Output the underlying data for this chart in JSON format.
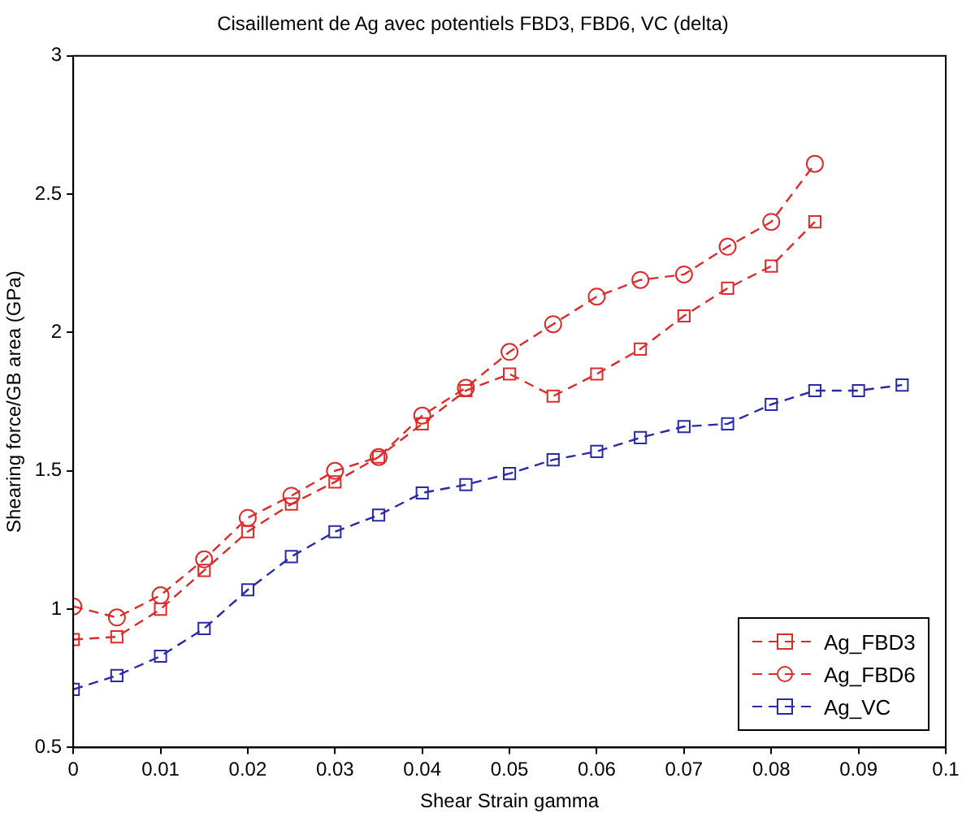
{
  "chart_data": {
    "type": "line",
    "title": "Cisaillement de Ag avec potentiels FBD3, FBD6, VC (delta)",
    "xlabel": "Shear Strain gamma",
    "ylabel": "Shearing force/GB area (GPa)",
    "x": [
      0,
      0.005,
      0.01,
      0.015,
      0.02,
      0.025,
      0.03,
      0.035,
      0.04,
      0.045,
      0.05,
      0.055,
      0.06,
      0.065,
      0.07,
      0.075,
      0.08,
      0.085,
      0.09,
      0.095
    ],
    "series": [
      {
        "name": "Ag_FBD3",
        "color": "#dd2a2a",
        "marker": "square",
        "values": [
          0.89,
          0.9,
          1.0,
          1.14,
          1.28,
          1.38,
          1.46,
          1.55,
          1.67,
          1.79,
          1.85,
          1.77,
          1.85,
          1.94,
          2.06,
          2.16,
          2.24,
          2.4,
          null,
          null
        ]
      },
      {
        "name": "Ag_FBD6",
        "color": "#dd2a2a",
        "marker": "circle",
        "values": [
          1.01,
          0.97,
          1.05,
          1.18,
          1.33,
          1.41,
          1.5,
          1.55,
          1.7,
          1.8,
          1.93,
          2.03,
          2.13,
          2.19,
          2.21,
          2.31,
          2.4,
          2.61,
          null,
          null
        ]
      },
      {
        "name": "Ag_VC",
        "color": "#2a2aa6",
        "marker": "square",
        "values": [
          0.71,
          0.76,
          0.83,
          0.93,
          1.07,
          1.19,
          1.28,
          1.34,
          1.42,
          1.45,
          1.49,
          1.54,
          1.57,
          1.62,
          1.66,
          1.67,
          1.74,
          1.79,
          1.79,
          1.81
        ]
      }
    ],
    "xlim": [
      0,
      0.1
    ],
    "xticks": [
      0,
      0.01,
      0.02,
      0.03,
      0.04,
      0.05,
      0.06,
      0.07,
      0.08,
      0.09,
      0.1
    ],
    "ylim": [
      0.5,
      3
    ],
    "yticks": [
      0.5,
      1,
      1.5,
      2,
      2.5,
      3
    ],
    "grid": false,
    "legend": "bottom right",
    "line_style": "dashed"
  }
}
